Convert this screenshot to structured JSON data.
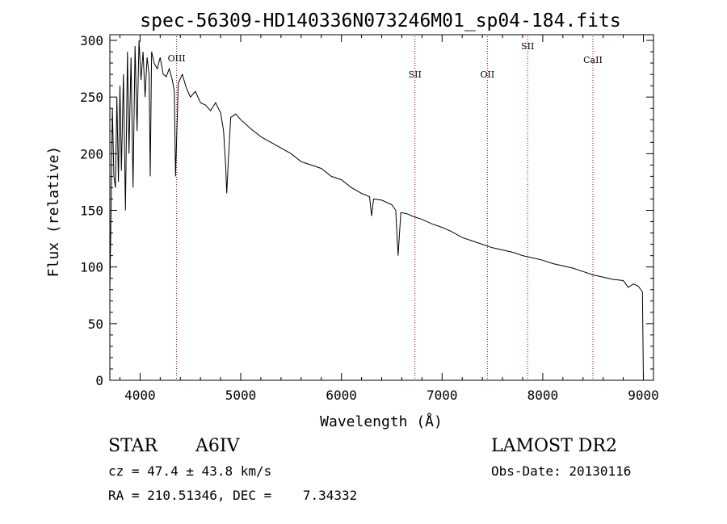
{
  "chart_data": {
    "type": "line",
    "title": "spec-56309-HD140336N073246M01_sp04-184.fits",
    "xlabel": "Wavelength (Å)",
    "ylabel": "Flux (relative)",
    "xlim": [
      3700,
      9100
    ],
    "ylim": [
      0,
      305
    ],
    "x_ticks": [
      4000,
      5000,
      6000,
      7000,
      8000,
      9000
    ],
    "y_ticks": [
      0,
      50,
      100,
      150,
      200,
      250,
      300
    ],
    "grid": false,
    "line_color": "#000000",
    "marker_color": "#aa0000",
    "lines": [
      {
        "label": "OIII",
        "x": 4363
      },
      {
        "label": "SII",
        "x": 6731
      },
      {
        "label": "OII",
        "x": 7450
      },
      {
        "label": "SII",
        "x": 7850
      },
      {
        "label": "CaII",
        "x": 8498
      }
    ],
    "series": [
      {
        "x": [
          3700,
          3712,
          3725,
          3740,
          3755,
          3770,
          3785,
          3800,
          3815,
          3835,
          3855,
          3875,
          3890,
          3910,
          3930,
          3950,
          3970,
          3990,
          4010,
          4030,
          4050,
          4070,
          4090,
          4101,
          4115,
          4140,
          4170,
          4200,
          4230,
          4260,
          4290,
          4320,
          4340,
          4352,
          4380,
          4420,
          4460,
          4500,
          4550,
          4600,
          4650,
          4700,
          4750,
          4800,
          4830,
          4850,
          4861,
          4875,
          4900,
          4950,
          5000,
          5100,
          5200,
          5300,
          5400,
          5500,
          5600,
          5700,
          5800,
          5900,
          6000,
          6100,
          6200,
          6280,
          6300,
          6320,
          6400,
          6500,
          6540,
          6563,
          6590,
          6650,
          6700,
          6800,
          6900,
          7000,
          7100,
          7200,
          7300,
          7400,
          7500,
          7600,
          7700,
          7800,
          7900,
          8000,
          8100,
          8200,
          8300,
          8400,
          8500,
          8600,
          8700,
          8800,
          8850,
          8900,
          8950,
          8990,
          9000
        ],
        "y": [
          80,
          150,
          240,
          180,
          170,
          250,
          175,
          260,
          185,
          270,
          150,
          290,
          200,
          285,
          170,
          295,
          220,
          300,
          265,
          290,
          250,
          285,
          270,
          180,
          290,
          280,
          275,
          285,
          270,
          268,
          275,
          265,
          255,
          180,
          262,
          270,
          258,
          250,
          255,
          245,
          243,
          238,
          245,
          236,
          220,
          190,
          165,
          190,
          232,
          235,
          230,
          222,
          215,
          210,
          205,
          200,
          193,
          190,
          187,
          180,
          177,
          170,
          165,
          162,
          145,
          160,
          159,
          155,
          150,
          110,
          148,
          147,
          145,
          142,
          138,
          135,
          131,
          126,
          123,
          120,
          117,
          115,
          113,
          110,
          108,
          106,
          103,
          101,
          99,
          96,
          93,
          91,
          89,
          88,
          82,
          85,
          83,
          78,
          0
        ]
      }
    ]
  },
  "footer": {
    "object_class": "STAR",
    "subclass": "A6IV",
    "survey": "LAMOST DR2",
    "cz_line": "cz = 47.4 ± 43.8 km/s",
    "obs_date_line": "Obs-Date: 20130116",
    "radec_line": "RA = 210.51346, DEC =    7.34332"
  }
}
